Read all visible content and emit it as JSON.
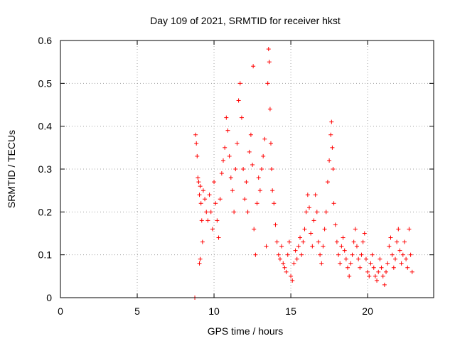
{
  "chart_data": {
    "type": "scatter",
    "title": "Day 109 of 2021, SRMTID for receiver hkst",
    "xlabel": "GPS time / hours",
    "ylabel": "SRMTID / TECUs",
    "xlim": [
      0,
      24.3
    ],
    "ylim": [
      0,
      0.6
    ],
    "x_ticks": [
      0,
      5,
      10,
      15,
      20
    ],
    "x_tick_labels": [
      "0",
      "5",
      "10",
      "15",
      "20"
    ],
    "y_ticks": [
      0,
      0.1,
      0.2,
      0.3,
      0.4,
      0.5,
      0.6
    ],
    "y_tick_labels": [
      "0",
      "0.1",
      "0.2",
      "0.3",
      "0.4",
      "0.5",
      "0.6"
    ],
    "grid": true,
    "marker": "plus",
    "color": "#ff0000",
    "series": [
      {
        "name": "SRMTID",
        "points": [
          [
            8.75,
            0.0
          ],
          [
            8.8,
            0.38
          ],
          [
            8.85,
            0.36
          ],
          [
            8.9,
            0.33
          ],
          [
            8.95,
            0.28
          ],
          [
            9.0,
            0.27
          ],
          [
            9.05,
            0.24
          ],
          [
            9.1,
            0.26
          ],
          [
            9.15,
            0.22
          ],
          [
            9.2,
            0.18
          ],
          [
            9.25,
            0.13
          ],
          [
            9.05,
            0.08
          ],
          [
            9.1,
            0.09
          ],
          [
            9.3,
            0.25
          ],
          [
            9.4,
            0.23
          ],
          [
            9.5,
            0.2
          ],
          [
            9.6,
            0.18
          ],
          [
            9.7,
            0.24
          ],
          [
            9.8,
            0.2
          ],
          [
            9.9,
            0.16
          ],
          [
            10.0,
            0.27
          ],
          [
            10.1,
            0.22
          ],
          [
            10.2,
            0.18
          ],
          [
            10.3,
            0.14
          ],
          [
            10.4,
            0.23
          ],
          [
            10.5,
            0.29
          ],
          [
            10.6,
            0.32
          ],
          [
            10.7,
            0.35
          ],
          [
            10.8,
            0.42
          ],
          [
            10.9,
            0.39
          ],
          [
            11.0,
            0.33
          ],
          [
            11.1,
            0.28
          ],
          [
            11.2,
            0.25
          ],
          [
            11.3,
            0.2
          ],
          [
            11.4,
            0.3
          ],
          [
            11.5,
            0.36
          ],
          [
            11.6,
            0.46
          ],
          [
            11.7,
            0.5
          ],
          [
            11.8,
            0.42
          ],
          [
            11.9,
            0.3
          ],
          [
            12.0,
            0.23
          ],
          [
            12.1,
            0.27
          ],
          [
            12.2,
            0.2
          ],
          [
            12.3,
            0.34
          ],
          [
            12.4,
            0.38
          ],
          [
            12.5,
            0.31
          ],
          [
            12.6,
            0.16
          ],
          [
            12.7,
            0.1
          ],
          [
            12.8,
            0.22
          ],
          [
            12.9,
            0.28
          ],
          [
            13.0,
            0.25
          ],
          [
            12.55,
            0.54
          ],
          [
            13.1,
            0.3
          ],
          [
            13.2,
            0.33
          ],
          [
            13.3,
            0.37
          ],
          [
            13.4,
            0.12
          ],
          [
            13.5,
            0.5
          ],
          [
            13.55,
            0.58
          ],
          [
            13.6,
            0.55
          ],
          [
            13.65,
            0.44
          ],
          [
            13.7,
            0.36
          ],
          [
            13.75,
            0.3
          ],
          [
            13.8,
            0.25
          ],
          [
            13.9,
            0.22
          ],
          [
            14.0,
            0.17
          ],
          [
            14.1,
            0.13
          ],
          [
            14.2,
            0.1
          ],
          [
            14.3,
            0.09
          ],
          [
            14.4,
            0.12
          ],
          [
            14.5,
            0.08
          ],
          [
            14.6,
            0.07
          ],
          [
            14.7,
            0.06
          ],
          [
            14.8,
            0.1
          ],
          [
            14.9,
            0.13
          ],
          [
            15.0,
            0.05
          ],
          [
            15.1,
            0.04
          ],
          [
            15.2,
            0.08
          ],
          [
            15.3,
            0.11
          ],
          [
            15.4,
            0.09
          ],
          [
            15.5,
            0.12
          ],
          [
            15.6,
            0.14
          ],
          [
            15.7,
            0.1
          ],
          [
            15.8,
            0.13
          ],
          [
            15.9,
            0.16
          ],
          [
            16.0,
            0.2
          ],
          [
            16.1,
            0.24
          ],
          [
            16.2,
            0.21
          ],
          [
            16.3,
            0.15
          ],
          [
            16.4,
            0.12
          ],
          [
            16.5,
            0.18
          ],
          [
            16.6,
            0.24
          ],
          [
            16.7,
            0.2
          ],
          [
            16.8,
            0.13
          ],
          [
            16.9,
            0.1
          ],
          [
            17.0,
            0.08
          ],
          [
            17.1,
            0.12
          ],
          [
            17.2,
            0.16
          ],
          [
            17.3,
            0.2
          ],
          [
            17.4,
            0.27
          ],
          [
            17.5,
            0.32
          ],
          [
            17.6,
            0.38
          ],
          [
            17.65,
            0.41
          ],
          [
            17.7,
            0.35
          ],
          [
            17.75,
            0.3
          ],
          [
            17.8,
            0.22
          ],
          [
            17.9,
            0.17
          ],
          [
            18.0,
            0.13
          ],
          [
            18.1,
            0.1
          ],
          [
            18.2,
            0.08
          ],
          [
            18.3,
            0.12
          ],
          [
            18.4,
            0.14
          ],
          [
            18.5,
            0.11
          ],
          [
            18.6,
            0.09
          ],
          [
            18.7,
            0.07
          ],
          [
            18.8,
            0.05
          ],
          [
            18.9,
            0.08
          ],
          [
            19.0,
            0.1
          ],
          [
            19.1,
            0.13
          ],
          [
            19.2,
            0.16
          ],
          [
            19.3,
            0.12
          ],
          [
            19.4,
            0.09
          ],
          [
            19.5,
            0.07
          ],
          [
            19.6,
            0.1
          ],
          [
            19.7,
            0.13
          ],
          [
            19.8,
            0.15
          ],
          [
            19.9,
            0.09
          ],
          [
            20.0,
            0.06
          ],
          [
            20.1,
            0.05
          ],
          [
            20.2,
            0.08
          ],
          [
            20.3,
            0.1
          ],
          [
            20.4,
            0.07
          ],
          [
            20.5,
            0.05
          ],
          [
            20.6,
            0.04
          ],
          [
            20.7,
            0.06
          ],
          [
            20.8,
            0.09
          ],
          [
            20.9,
            0.07
          ],
          [
            21.0,
            0.05
          ],
          [
            21.1,
            0.03
          ],
          [
            21.2,
            0.06
          ],
          [
            21.3,
            0.08
          ],
          [
            21.4,
            0.12
          ],
          [
            21.5,
            0.14
          ],
          [
            21.6,
            0.1
          ],
          [
            21.7,
            0.07
          ],
          [
            21.8,
            0.09
          ],
          [
            21.9,
            0.13
          ],
          [
            22.0,
            0.16
          ],
          [
            22.1,
            0.11
          ],
          [
            22.2,
            0.08
          ],
          [
            22.3,
            0.1
          ],
          [
            22.4,
            0.13
          ],
          [
            22.5,
            0.09
          ],
          [
            22.6,
            0.07
          ],
          [
            22.7,
            0.16
          ],
          [
            22.8,
            0.1
          ],
          [
            22.9,
            0.06
          ]
        ]
      }
    ]
  }
}
